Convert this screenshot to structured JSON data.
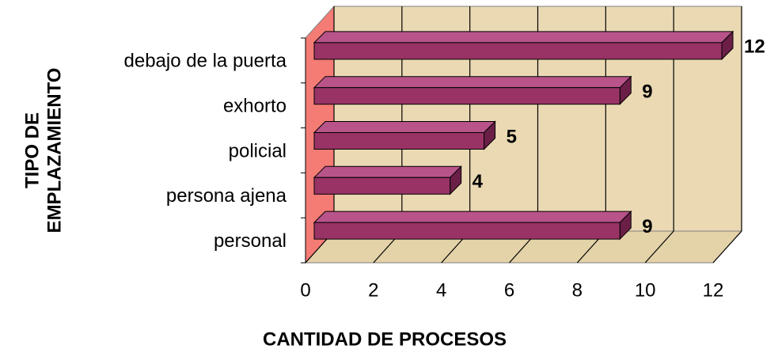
{
  "chart_data": {
    "type": "bar",
    "orientation": "horizontal",
    "categories": [
      "debajo de la puerta",
      "exhorto",
      "policial",
      "persona ajena",
      "personal"
    ],
    "values": [
      12,
      9,
      5,
      4,
      9
    ],
    "color": "#993366",
    "xlim": [
      0,
      12
    ],
    "xticks": [
      0,
      2,
      4,
      6,
      8,
      10,
      12
    ],
    "grid": true,
    "xlabel": "CANTIDAD DE PROCESOS",
    "ylabel": [
      "TIPO DE",
      "EMPLAZAMIENTO"
    ]
  }
}
